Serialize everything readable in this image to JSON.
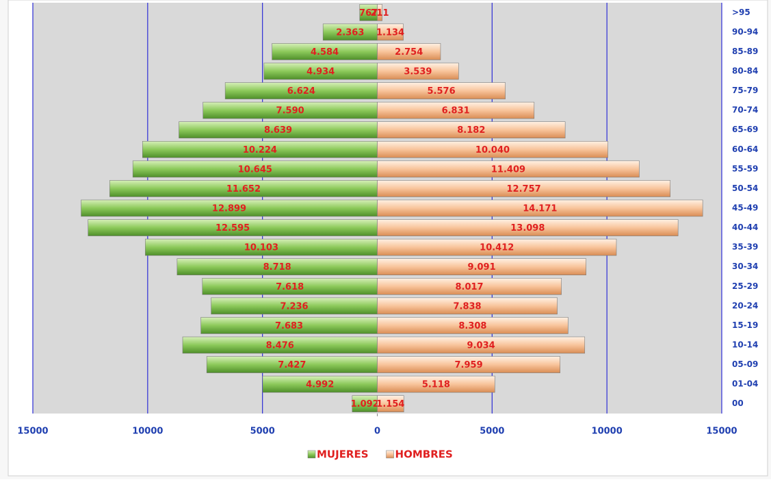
{
  "chart_data": {
    "type": "pyramid",
    "categories": [
      ">95",
      "90-94",
      "85-89",
      "80-84",
      "75-79",
      "70-74",
      "65-69",
      "60-64",
      "55-59",
      "50-54",
      "45-49",
      "40-44",
      "35-39",
      "30-34",
      "25-29",
      "20-24",
      "15-19",
      "10-14",
      "05-09",
      "01-04",
      "00"
    ],
    "series": [
      {
        "name": "MUJERES",
        "color": "#7fbf4d",
        "side": "left",
        "values": [
          767,
          2363,
          4584,
          4934,
          6624,
          7590,
          8639,
          10224,
          10645,
          11652,
          12899,
          12595,
          10103,
          8718,
          7618,
          7236,
          7683,
          8476,
          7427,
          4992,
          1092
        ],
        "value_labels": [
          "767",
          "2.363",
          "4.584",
          "4.934",
          "6.624",
          "7.590",
          "8.639",
          "10.224",
          "10.645",
          "11.652",
          "12.899",
          "12.595",
          "10.103",
          "8.718",
          "7.618",
          "7.236",
          "7.683",
          "8.476",
          "7.427",
          "4.992",
          "1.092"
        ]
      },
      {
        "name": "HOMBRES",
        "color": "#f6b98a",
        "side": "right",
        "values": [
          211,
          1134,
          2754,
          3539,
          5576,
          6831,
          8182,
          10040,
          11409,
          12757,
          14171,
          13098,
          10412,
          9091,
          8017,
          7838,
          8308,
          9034,
          7959,
          5118,
          1154
        ],
        "value_labels": [
          "211",
          "1.134",
          "2.754",
          "3.539",
          "5.576",
          "6.831",
          "8.182",
          "10.040",
          "11.409",
          "12.757",
          "14.171",
          "13.098",
          "10.412",
          "9.091",
          "8.017",
          "7.838",
          "8.308",
          "9.034",
          "7.959",
          "5.118",
          "1.154"
        ]
      }
    ],
    "xlim": [
      -15000,
      15000
    ],
    "xticks": [
      {
        "value": -15000,
        "label": "15000"
      },
      {
        "value": -10000,
        "label": "10000"
      },
      {
        "value": -5000,
        "label": "5000"
      },
      0,
      5000,
      10000,
      15000
    ],
    "grid": true
  }
}
